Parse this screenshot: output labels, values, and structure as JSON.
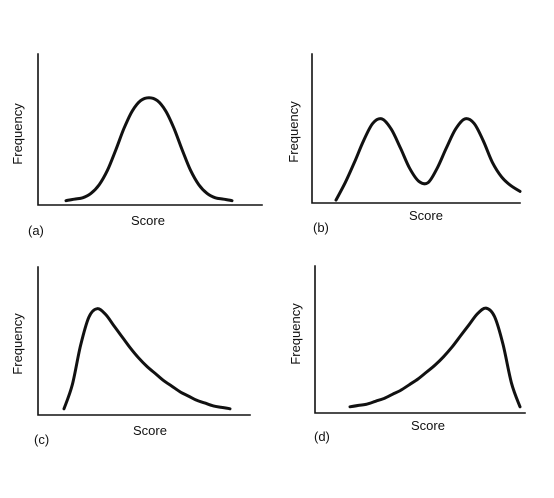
{
  "chart_data": [
    {
      "type": "line",
      "panel_label": "(a)",
      "xlabel": "Score",
      "ylabel": "Frequency",
      "shape": "normal",
      "xlim": [
        0,
        100
      ],
      "ylim": [
        0,
        100
      ],
      "series": [
        {
          "x": [
            0,
            5,
            10,
            15,
            20,
            25,
            30,
            35,
            40,
            45,
            50,
            55,
            60,
            65,
            70,
            75,
            80,
            85,
            90,
            95,
            100
          ],
          "y": [
            3,
            4,
            5,
            8,
            14,
            24,
            38,
            53,
            65,
            72,
            74,
            72,
            65,
            53,
            38,
            24,
            14,
            8,
            5,
            4,
            3
          ]
        }
      ]
    },
    {
      "type": "line",
      "panel_label": "(b)",
      "xlabel": "Score",
      "ylabel": "Frequency",
      "shape": "bimodal",
      "xlim": [
        0,
        100
      ],
      "ylim": [
        0,
        100
      ],
      "series": [
        {
          "x": [
            0,
            5,
            10,
            15,
            20,
            25,
            30,
            35,
            40,
            45,
            50,
            55,
            60,
            65,
            70,
            75,
            80,
            85,
            90,
            95,
            100
          ],
          "y": [
            2,
            14,
            28,
            43,
            55,
            58,
            51,
            38,
            24,
            15,
            14,
            24,
            38,
            51,
            58,
            55,
            43,
            28,
            18,
            12,
            8
          ]
        }
      ]
    },
    {
      "type": "line",
      "panel_label": "(c)",
      "xlabel": "Score",
      "ylabel": "Frequency",
      "shape": "positively skewed",
      "xlim": [
        0,
        100
      ],
      "ylim": [
        0,
        100
      ],
      "series": [
        {
          "x": [
            0,
            5,
            10,
            15,
            20,
            25,
            30,
            35,
            40,
            45,
            50,
            55,
            60,
            65,
            70,
            75,
            80,
            85,
            90,
            95,
            100
          ],
          "y": [
            3,
            20,
            48,
            68,
            74,
            70,
            62,
            54,
            46,
            39,
            33,
            28,
            23,
            19,
            15,
            12,
            9,
            7,
            5,
            4,
            3
          ]
        }
      ]
    },
    {
      "type": "line",
      "panel_label": "(d)",
      "xlabel": "Score",
      "ylabel": "Frequency",
      "shape": "negatively skewed",
      "xlim": [
        0,
        100
      ],
      "ylim": [
        0,
        100
      ],
      "series": [
        {
          "x": [
            0,
            5,
            10,
            15,
            20,
            25,
            30,
            35,
            40,
            45,
            50,
            55,
            60,
            65,
            70,
            75,
            80,
            85,
            90,
            95,
            100
          ],
          "y": [
            3,
            4,
            5,
            7,
            9,
            12,
            15,
            19,
            23,
            28,
            33,
            39,
            46,
            54,
            62,
            70,
            74,
            68,
            48,
            20,
            3
          ]
        }
      ]
    }
  ]
}
